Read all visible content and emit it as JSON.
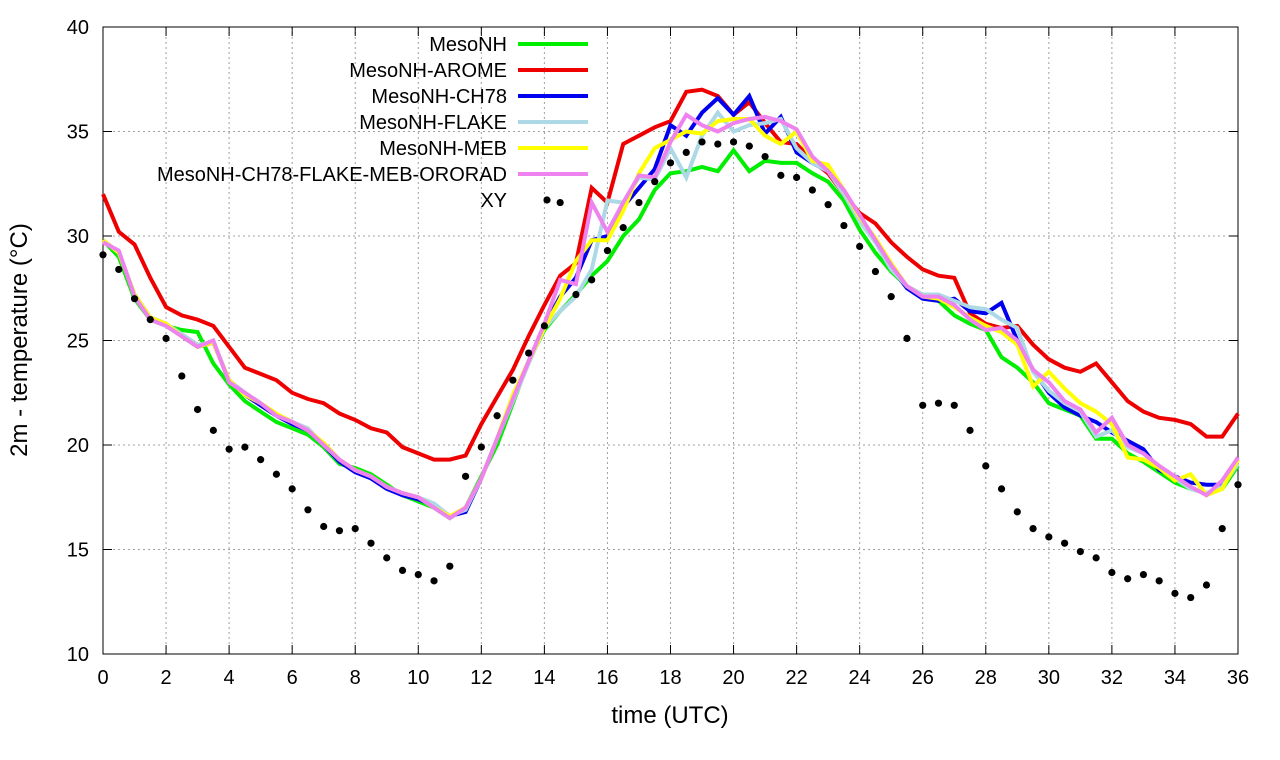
{
  "chart_data": {
    "type": "line",
    "xlabel": "time (UTC)",
    "ylabel": "2m - temperature (°C)",
    "xlim": [
      0,
      36
    ],
    "ylim": [
      10,
      40
    ],
    "xticks": [
      0,
      2,
      4,
      6,
      8,
      10,
      12,
      14,
      16,
      18,
      20,
      22,
      24,
      26,
      28,
      30,
      32,
      34,
      36
    ],
    "yticks": [
      10,
      15,
      20,
      25,
      30,
      35,
      40
    ],
    "grid": true,
    "legend_position": "top-left",
    "series": [
      {
        "name": "MesoNH",
        "color": "#00ee00",
        "style": "line",
        "x": [
          0,
          0.5,
          1,
          1.5,
          2,
          2.5,
          3,
          3.5,
          4,
          4.5,
          5,
          5.5,
          6,
          6.5,
          7,
          7.5,
          8,
          8.5,
          9,
          9.5,
          10,
          10.5,
          11,
          11.5,
          12,
          12.5,
          13,
          13.5,
          14,
          14.5,
          15,
          15.5,
          16,
          16.5,
          17,
          17.5,
          18,
          18.5,
          19,
          19.5,
          20,
          20.5,
          21,
          21.5,
          22,
          22.5,
          23,
          23.5,
          24,
          24.5,
          25,
          25.5,
          26,
          26.5,
          27,
          27.5,
          28,
          28.5,
          29,
          29.5,
          30,
          30.5,
          31,
          31.5,
          32,
          32.5,
          33,
          33.5,
          34,
          34.5,
          35,
          35.5,
          36
        ],
        "y": [
          29.8,
          29.0,
          27.0,
          26.0,
          25.7,
          25.5,
          25.4,
          23.9,
          22.9,
          22.1,
          21.6,
          21.1,
          20.8,
          20.5,
          19.9,
          19.1,
          18.9,
          18.6,
          18.1,
          17.6,
          17.3,
          17.0,
          16.5,
          17.0,
          18.5,
          20.0,
          22.0,
          24.0,
          25.5,
          26.4,
          27.2,
          28.1,
          28.8,
          30.0,
          30.8,
          32.2,
          33.0,
          33.1,
          33.3,
          33.1,
          34.1,
          33.1,
          33.6,
          33.5,
          33.5,
          33.0,
          32.6,
          31.7,
          30.3,
          29.2,
          28.3,
          27.6,
          27.1,
          26.9,
          26.2,
          25.8,
          25.5,
          24.2,
          23.7,
          23.0,
          22.0,
          21.7,
          21.4,
          20.3,
          20.3,
          19.6,
          19.2,
          18.7,
          18.2,
          17.9,
          17.7,
          17.9,
          19.0
        ]
      },
      {
        "name": "MesoNH-AROME",
        "color": "#ee0000",
        "style": "line",
        "x": [
          0,
          0.5,
          1,
          1.5,
          2,
          2.5,
          3,
          3.5,
          4,
          4.5,
          5,
          5.5,
          6,
          6.5,
          7,
          7.5,
          8,
          8.5,
          9,
          9.5,
          10,
          10.5,
          11,
          11.5,
          12,
          12.5,
          13,
          13.5,
          14,
          14.5,
          15,
          15.5,
          16,
          16.5,
          17,
          17.5,
          18,
          18.5,
          19,
          19.5,
          20,
          20.5,
          21,
          21.5,
          22,
          22.5,
          23,
          23.5,
          24,
          24.5,
          25,
          25.5,
          26,
          26.5,
          27,
          27.5,
          28,
          28.5,
          29,
          29.5,
          30,
          30.5,
          31,
          31.5,
          32,
          32.5,
          33,
          33.5,
          34,
          34.5,
          35,
          35.5,
          36
        ],
        "y": [
          32.0,
          30.2,
          29.6,
          28.0,
          26.6,
          26.2,
          26.0,
          25.7,
          24.7,
          23.7,
          23.4,
          23.1,
          22.5,
          22.2,
          22.0,
          21.5,
          21.2,
          20.8,
          20.6,
          19.9,
          19.6,
          19.3,
          19.3,
          19.5,
          21.0,
          22.3,
          23.6,
          25.2,
          26.7,
          28.1,
          28.7,
          32.3,
          31.6,
          34.4,
          34.8,
          35.2,
          35.5,
          36.9,
          37.0,
          36.7,
          35.8,
          36.4,
          35.4,
          34.5,
          34.4,
          33.6,
          33.0,
          32.0,
          31.1,
          30.6,
          29.7,
          29.0,
          28.4,
          28.1,
          28.0,
          26.3,
          25.8,
          25.6,
          25.7,
          24.8,
          24.1,
          23.7,
          23.5,
          23.9,
          23.0,
          22.1,
          21.6,
          21.3,
          21.2,
          21.0,
          20.4,
          20.4,
          21.5
        ]
      },
      {
        "name": "MesoNH-CH78",
        "color": "#0000ee",
        "style": "line",
        "x": [
          0,
          0.5,
          1,
          1.5,
          2,
          2.5,
          3,
          3.5,
          4,
          4.5,
          5,
          5.5,
          6,
          6.5,
          7,
          7.5,
          8,
          8.5,
          9,
          9.5,
          10,
          10.5,
          11,
          11.5,
          12,
          12.5,
          13,
          13.5,
          14,
          14.5,
          15,
          15.5,
          16,
          16.5,
          17,
          17.5,
          18,
          18.5,
          19,
          19.5,
          20,
          20.5,
          21,
          21.5,
          22,
          22.5,
          23,
          23.5,
          24,
          24.5,
          25,
          25.5,
          26,
          26.5,
          27,
          27.5,
          28,
          28.5,
          29,
          29.5,
          30,
          30.5,
          31,
          31.5,
          32,
          32.5,
          33,
          33.5,
          34,
          34.5,
          35,
          35.5,
          36
        ],
        "y": [
          29.8,
          29.2,
          27.2,
          26.1,
          25.8,
          25.2,
          24.7,
          24.9,
          23.1,
          22.4,
          21.9,
          21.4,
          21.0,
          20.7,
          20.0,
          19.2,
          18.7,
          18.4,
          17.9,
          17.6,
          17.4,
          17.1,
          16.6,
          16.8,
          18.4,
          20.3,
          22.3,
          24.0,
          25.7,
          27.1,
          28.0,
          29.8,
          30.0,
          31.4,
          32.3,
          33.2,
          35.3,
          34.8,
          35.9,
          36.6,
          35.8,
          36.7,
          34.9,
          35.7,
          34.0,
          33.5,
          33.1,
          32.1,
          30.9,
          29.8,
          28.5,
          27.5,
          27.0,
          26.9,
          27.0,
          26.4,
          26.3,
          26.8,
          25.0,
          23.6,
          22.5,
          21.8,
          21.4,
          21.1,
          20.6,
          20.2,
          19.8,
          18.8,
          18.5,
          18.2,
          18.1,
          18.1,
          19.3
        ]
      },
      {
        "name": "MesoNH-FLAKE",
        "color": "#add8e6",
        "style": "line",
        "x": [
          0,
          0.5,
          1,
          1.5,
          2,
          2.5,
          3,
          3.5,
          4,
          4.5,
          5,
          5.5,
          6,
          6.5,
          7,
          7.5,
          8,
          8.5,
          9,
          9.5,
          10,
          10.5,
          11,
          11.5,
          12,
          12.5,
          13,
          13.5,
          14,
          14.5,
          15,
          15.5,
          16,
          16.5,
          17,
          17.5,
          18,
          18.5,
          19,
          19.5,
          20,
          20.5,
          21,
          21.5,
          22,
          22.5,
          23,
          23.5,
          24,
          24.5,
          25,
          25.5,
          26,
          26.5,
          27,
          27.5,
          28,
          28.5,
          29,
          29.5,
          30,
          30.5,
          31,
          31.5,
          32,
          32.5,
          33,
          33.5,
          34,
          34.5,
          35,
          35.5,
          36
        ],
        "y": [
          29.8,
          29.2,
          27.2,
          26.1,
          25.8,
          25.3,
          24.8,
          24.9,
          23.1,
          22.5,
          22.0,
          21.5,
          21.1,
          20.8,
          20.0,
          19.3,
          18.8,
          18.5,
          18.0,
          17.7,
          17.5,
          17.2,
          16.6,
          16.9,
          18.4,
          20.3,
          22.1,
          23.9,
          25.6,
          26.4,
          27.1,
          28.4,
          31.7,
          31.6,
          32.8,
          32.7,
          34.2,
          32.8,
          34.8,
          35.9,
          35.0,
          35.3,
          35.4,
          35.6,
          34.2,
          33.5,
          33.1,
          32.0,
          30.7,
          29.7,
          28.4,
          27.6,
          27.2,
          27.2,
          26.9,
          26.6,
          26.5,
          26.0,
          25.6,
          23.5,
          22.6,
          22.0,
          21.6,
          20.4,
          20.7,
          19.9,
          19.6,
          18.9,
          18.4,
          17.9,
          17.7,
          18.0,
          19.1
        ]
      },
      {
        "name": "MesoNH-MEB",
        "color": "#ffff00",
        "style": "line",
        "x": [
          0,
          0.5,
          1,
          1.5,
          2,
          2.5,
          3,
          3.5,
          4,
          4.5,
          5,
          5.5,
          6,
          6.5,
          7,
          7.5,
          8,
          8.5,
          9,
          9.5,
          10,
          10.5,
          11,
          11.5,
          12,
          12.5,
          13,
          13.5,
          14,
          14.5,
          15,
          15.5,
          16,
          16.5,
          17,
          17.5,
          18,
          18.5,
          19,
          19.5,
          20,
          20.5,
          21,
          21.5,
          22,
          22.5,
          23,
          23.5,
          24,
          24.5,
          25,
          25.5,
          26,
          26.5,
          27,
          27.5,
          28,
          28.5,
          29,
          29.5,
          30,
          30.5,
          31,
          31.5,
          32,
          32.5,
          33,
          33.5,
          34,
          34.5,
          35,
          35.5,
          36
        ],
        "y": [
          29.8,
          29.2,
          27.2,
          26.1,
          25.8,
          25.2,
          24.7,
          24.9,
          23.1,
          22.4,
          22.0,
          21.5,
          21.1,
          20.7,
          20.1,
          19.3,
          18.8,
          18.5,
          18.0,
          17.7,
          17.5,
          17.0,
          16.6,
          17.0,
          18.4,
          20.3,
          22.4,
          24.0,
          25.6,
          27.0,
          28.8,
          29.8,
          29.8,
          31.2,
          33.0,
          34.2,
          34.6,
          35.0,
          34.9,
          35.5,
          35.6,
          35.6,
          34.8,
          34.4,
          35.0,
          33.6,
          33.4,
          32.2,
          30.9,
          29.9,
          28.7,
          27.6,
          27.1,
          27.0,
          26.6,
          26.1,
          25.7,
          25.4,
          24.8,
          22.8,
          23.5,
          22.7,
          22.0,
          21.6,
          21.0,
          19.4,
          19.3,
          18.9,
          18.3,
          18.6,
          17.6,
          17.9,
          19.3
        ]
      },
      {
        "name": "MesoNH-CH78-FLAKE-MEB-ORORAD",
        "color": "#ee82ee",
        "style": "line",
        "x": [
          0,
          0.5,
          1,
          1.5,
          2,
          2.5,
          3,
          3.5,
          4,
          4.5,
          5,
          5.5,
          6,
          6.5,
          7,
          7.5,
          8,
          8.5,
          9,
          9.5,
          10,
          10.5,
          11,
          11.5,
          12,
          12.5,
          13,
          13.5,
          14,
          14.5,
          15,
          15.5,
          16,
          16.5,
          17,
          17.5,
          18,
          18.5,
          19,
          19.5,
          20,
          20.5,
          21,
          21.5,
          22,
          22.5,
          23,
          23.5,
          24,
          24.5,
          25,
          25.5,
          26,
          26.5,
          27,
          27.5,
          28,
          28.5,
          29,
          29.5,
          30,
          30.5,
          31,
          31.5,
          32,
          32.5,
          33,
          33.5,
          34,
          34.5,
          35,
          35.5,
          36
        ],
        "y": [
          29.7,
          29.3,
          27.1,
          26.0,
          25.7,
          25.2,
          24.7,
          25.0,
          23.0,
          22.5,
          22.0,
          21.4,
          21.1,
          20.7,
          20.0,
          19.3,
          18.8,
          18.5,
          18.0,
          17.7,
          17.5,
          17.0,
          16.5,
          17.0,
          18.4,
          20.3,
          22.2,
          24.0,
          25.8,
          27.9,
          27.7,
          31.6,
          30.2,
          31.6,
          32.9,
          32.8,
          34.5,
          35.8,
          35.3,
          35.0,
          35.4,
          35.6,
          35.7,
          35.5,
          35.1,
          33.8,
          33.1,
          32.2,
          31.0,
          29.8,
          28.6,
          27.6,
          27.1,
          27.1,
          26.7,
          26.0,
          25.5,
          25.6,
          25.0,
          23.6,
          23.0,
          22.1,
          21.7,
          20.6,
          21.3,
          20.0,
          19.6,
          19.0,
          18.5,
          18.0,
          17.6,
          18.3,
          19.4
        ]
      },
      {
        "name": "XY",
        "color": "#000000",
        "style": "points",
        "x": [
          0,
          0.5,
          1,
          1.5,
          2,
          2.5,
          3,
          3.5,
          4,
          4.5,
          5,
          5.5,
          6,
          6.5,
          7,
          7.5,
          8,
          8.5,
          9,
          9.5,
          10,
          10.5,
          11,
          11.5,
          12,
          12.5,
          13,
          13.5,
          14,
          14.5,
          15,
          15.5,
          16,
          16.5,
          17,
          17.5,
          18,
          18.5,
          19,
          19.5,
          20,
          20.5,
          21,
          21.5,
          22,
          22.5,
          23,
          23.5,
          24,
          24.5,
          25,
          25.5,
          26,
          26.5,
          27,
          27.5,
          28,
          28.5,
          29,
          29.5,
          30,
          30.5,
          31,
          31.5,
          32,
          32.5,
          33,
          33.5,
          34,
          34.5,
          35,
          35.5,
          36
        ],
        "y": [
          29.1,
          28.4,
          27.0,
          26.0,
          25.1,
          23.3,
          21.7,
          20.7,
          19.8,
          19.9,
          19.3,
          18.6,
          17.9,
          16.9,
          16.1,
          15.9,
          16.0,
          15.3,
          14.6,
          14.0,
          13.8,
          13.5,
          14.2,
          18.5,
          19.9,
          21.4,
          23.1,
          24.4,
          25.7,
          31.6,
          27.2,
          27.9,
          29.3,
          30.4,
          31.6,
          32.6,
          33.5,
          34.0,
          34.5,
          34.4,
          34.5,
          34.3,
          33.8,
          32.9,
          32.8,
          32.2,
          31.5,
          30.5,
          29.5,
          28.3,
          27.1,
          25.1,
          21.9,
          22.0,
          21.9,
          20.7,
          19.0,
          17.9,
          16.8,
          16.0,
          15.6,
          15.3,
          14.9,
          14.6,
          13.9,
          13.6,
          13.8,
          13.5,
          12.9,
          12.7,
          13.3,
          16.0,
          18.1
        ]
      }
    ]
  }
}
